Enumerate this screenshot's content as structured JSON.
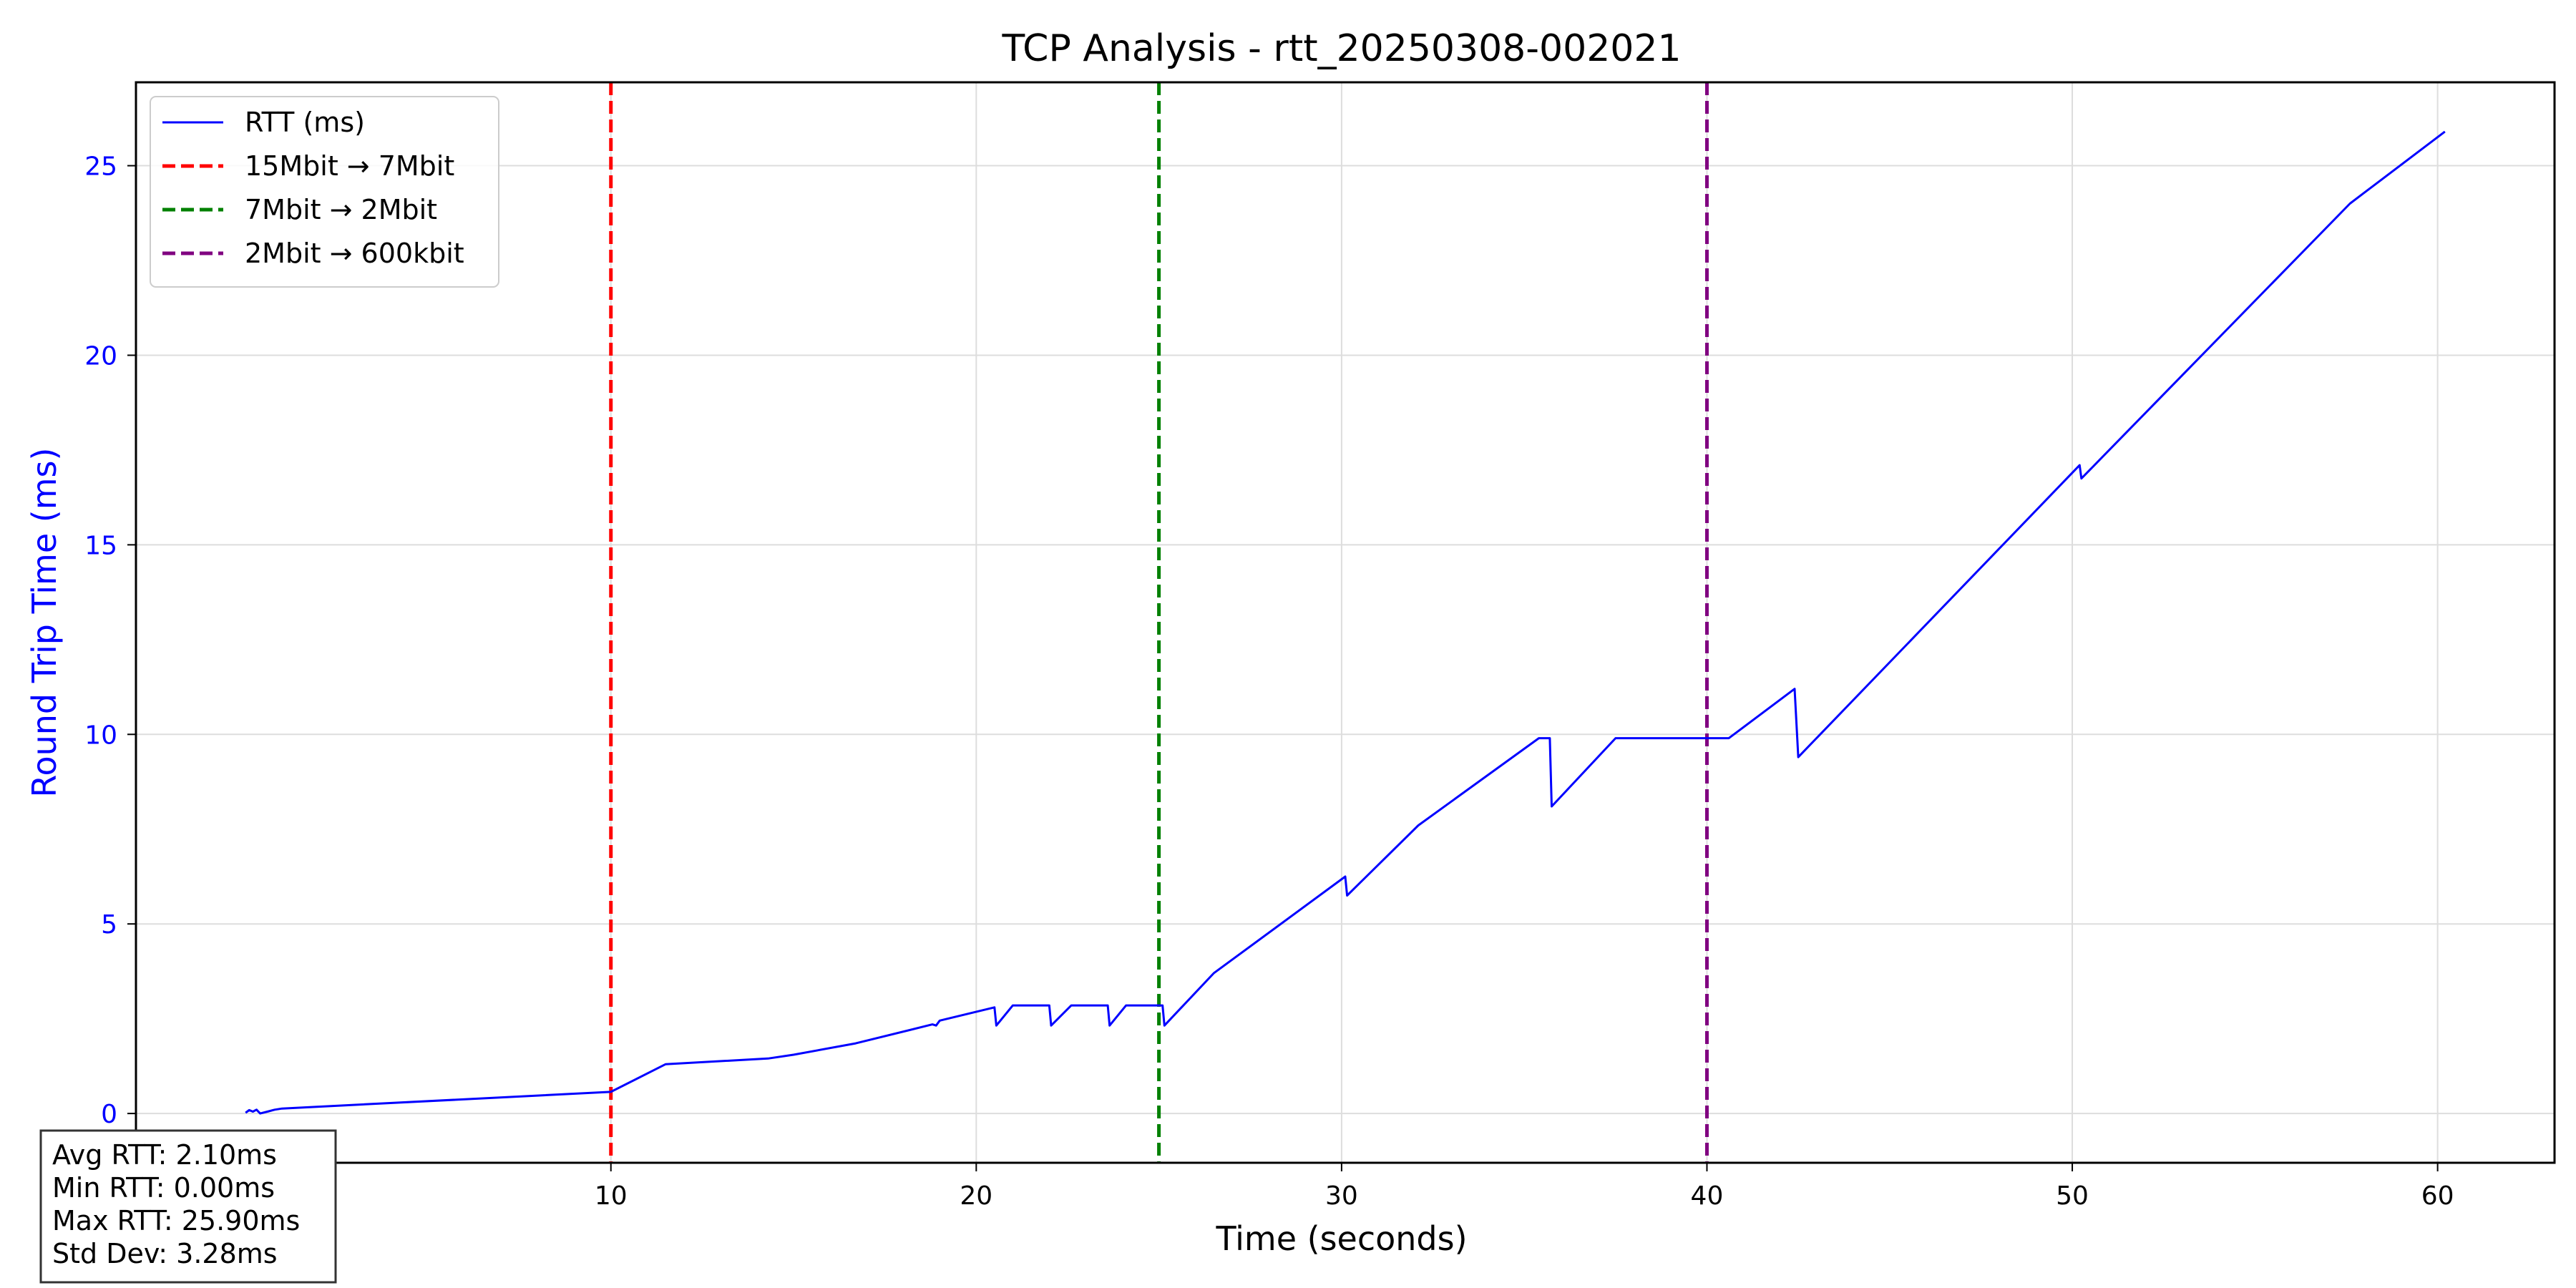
{
  "chart_data": {
    "type": "line",
    "title": "TCP Analysis - rtt_20250308-002021",
    "xlabel": "Time (seconds)",
    "ylabel": "Round Trip Time (ms)",
    "xlim": [
      -3,
      63.2
    ],
    "ylim": [
      -1.3,
      27.2
    ],
    "xticks": [
      10,
      20,
      30,
      40,
      50,
      60
    ],
    "yticks": [
      0,
      5,
      10,
      15,
      20,
      25
    ],
    "grid": true,
    "legend_position": "top-left",
    "series": [
      {
        "name": "RTT (ms)",
        "color": "#0000ff",
        "style": "solid",
        "points": [
          [
            0,
            0.02
          ],
          [
            0.1,
            0.09
          ],
          [
            0.2,
            0.05
          ],
          [
            0.3,
            0.1
          ],
          [
            0.4,
            0.0
          ],
          [
            0.6,
            0.05
          ],
          [
            0.8,
            0.1
          ],
          [
            1.0,
            0.13
          ],
          [
            10.0,
            0.57
          ],
          [
            11.5,
            1.3
          ],
          [
            14.3,
            1.45
          ],
          [
            15.0,
            1.55
          ],
          [
            16.7,
            1.85
          ],
          [
            18.8,
            2.35
          ],
          [
            18.9,
            2.32
          ],
          [
            19.0,
            2.45
          ],
          [
            20.5,
            2.8
          ],
          [
            20.55,
            2.32
          ],
          [
            21.0,
            2.85
          ],
          [
            22.0,
            2.85
          ],
          [
            22.05,
            2.32
          ],
          [
            22.6,
            2.85
          ],
          [
            23.6,
            2.85
          ],
          [
            23.65,
            2.32
          ],
          [
            24.1,
            2.85
          ],
          [
            25.1,
            2.85
          ],
          [
            25.15,
            2.32
          ],
          [
            26.5,
            3.7
          ],
          [
            30.1,
            6.25
          ],
          [
            30.15,
            5.75
          ],
          [
            32.1,
            7.6
          ],
          [
            35.4,
            9.9
          ],
          [
            35.7,
            9.9
          ],
          [
            35.75,
            8.1
          ],
          [
            37.5,
            9.9
          ],
          [
            40.6,
            9.9
          ],
          [
            42.4,
            11.2
          ],
          [
            42.5,
            9.4
          ],
          [
            50.2,
            17.1
          ],
          [
            50.25,
            16.75
          ],
          [
            57.6,
            24.0
          ],
          [
            60.2,
            25.9
          ]
        ]
      }
    ],
    "vlines": [
      {
        "name": "15Mbit → 7Mbit",
        "x": 10,
        "color": "#ff0000",
        "style": "dashed"
      },
      {
        "name": "7Mbit → 2Mbit",
        "x": 25,
        "color": "#008000",
        "style": "dashed"
      },
      {
        "name": "2Mbit → 600kbit",
        "x": 40,
        "color": "#800080",
        "style": "dashed"
      }
    ],
    "stats": [
      "Avg RTT: 2.10ms",
      "Min RTT: 0.00ms",
      "Max RTT: 25.90ms",
      "Std Dev: 3.28ms"
    ],
    "colors": {
      "y_axis_label": "#0000ff",
      "y_ticks": "#0000ff",
      "grid": "#dddddd"
    }
  }
}
